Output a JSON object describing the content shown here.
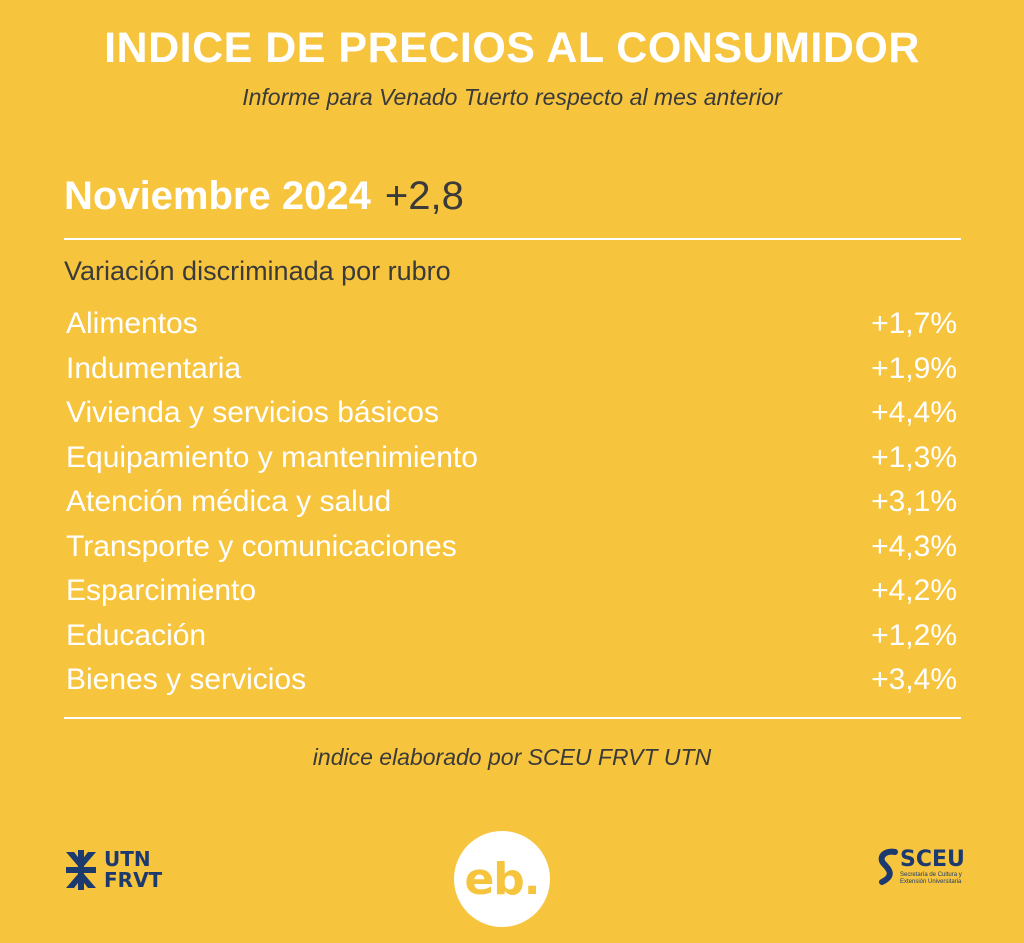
{
  "header": {
    "title": "INDICE DE PRECIOS AL CONSUMIDOR",
    "subtitle": "Informe para Venado Tuerto respecto al mes anterior"
  },
  "headline": {
    "period": "Noviembre 2024",
    "value": "+2,8"
  },
  "section": {
    "title": "Variación discriminada por rubro"
  },
  "rows": [
    {
      "label": "Alimentos",
      "value": "+1,7%"
    },
    {
      "label": "Indumentaria",
      "value": "+1,9%"
    },
    {
      "label": "Vivienda y servicios básicos",
      "value": "+4,4%"
    },
    {
      "label": "Equipamiento y mantenimiento",
      "value": "+1,3%"
    },
    {
      "label": "Atención médica y salud",
      "value": "+3,1%"
    },
    {
      "label": "Transporte y comunicaciones",
      "value": "+4,3%"
    },
    {
      "label": "Esparcimiento",
      "value": "+4,2%"
    },
    {
      "label": "Educación",
      "value": "+1,2%"
    },
    {
      "label": "Bienes y servicios",
      "value": "+3,4%"
    }
  ],
  "footer": {
    "credit": "indice elaborado por SCEU FRVT UTN",
    "utn_line1": "UTN",
    "utn_line2": "FRVT",
    "eb_logo": "eb.",
    "sceu_name": "SCEU",
    "sceu_caption": "Secretaría de Cultura y Extensión Universitaria"
  },
  "colors": {
    "background": "#F7C43E",
    "text_light": "#FFFFFF",
    "text_dark": "#3A3A3A",
    "logo_blue": "#1D3A6E"
  }
}
